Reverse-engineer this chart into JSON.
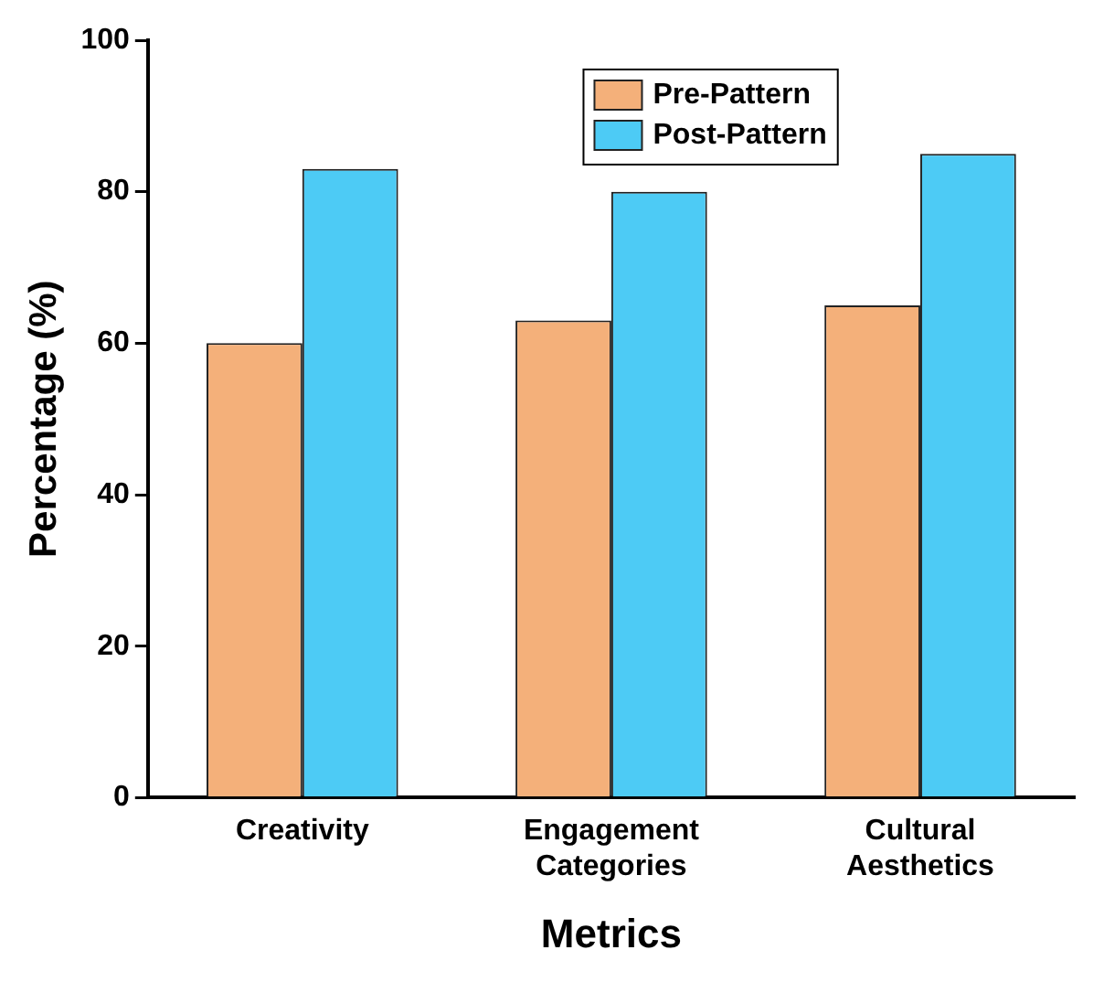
{
  "chart_data": {
    "type": "bar",
    "xlabel": "Metrics",
    "ylabel": "Percentage (%)",
    "categories": [
      "Creativity",
      "Engagement Categories",
      "Cultural Aesthetics"
    ],
    "series": [
      {
        "name": "Pre-Pattern",
        "color": "#f4b07a",
        "values": [
          60,
          63,
          65
        ]
      },
      {
        "name": "Post-Pattern",
        "color": "#4dcbf5",
        "values": [
          83,
          80,
          85
        ]
      }
    ],
    "ylim": [
      0,
      100
    ],
    "yticks": [
      0,
      20,
      40,
      60,
      80,
      100
    ],
    "grid": false,
    "legend": "top right"
  }
}
